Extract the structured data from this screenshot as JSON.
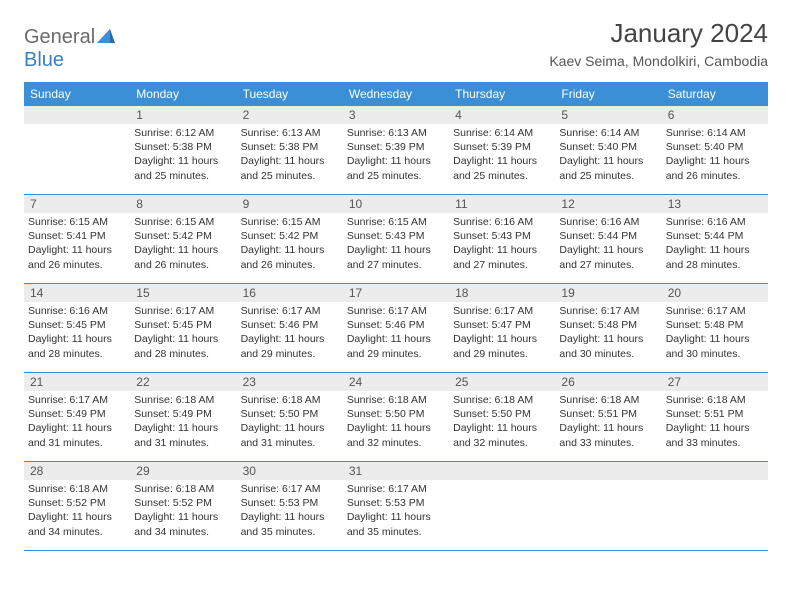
{
  "logo": {
    "general": "General",
    "blue": "Blue"
  },
  "title": "January 2024",
  "subtitle": "Kaev Seima, Mondolkiri, Cambodia",
  "colors": {
    "header_bg": "#3a8fd6",
    "header_text": "#ffffff",
    "daynum_bg": "#ececec",
    "daynum_text": "#555555",
    "body_text": "#333333",
    "title_text": "#444444",
    "logo_gray": "#6b6b6b",
    "logo_blue": "#3a7fc4",
    "rule": "#3a8fd6"
  },
  "dayheaders": [
    "Sunday",
    "Monday",
    "Tuesday",
    "Wednesday",
    "Thursday",
    "Friday",
    "Saturday"
  ],
  "weeks": [
    [
      {
        "n": "",
        "l1": "",
        "l2": "",
        "l3": "",
        "l4": ""
      },
      {
        "n": "1",
        "l1": "Sunrise: 6:12 AM",
        "l2": "Sunset: 5:38 PM",
        "l3": "Daylight: 11 hours",
        "l4": "and 25 minutes."
      },
      {
        "n": "2",
        "l1": "Sunrise: 6:13 AM",
        "l2": "Sunset: 5:38 PM",
        "l3": "Daylight: 11 hours",
        "l4": "and 25 minutes."
      },
      {
        "n": "3",
        "l1": "Sunrise: 6:13 AM",
        "l2": "Sunset: 5:39 PM",
        "l3": "Daylight: 11 hours",
        "l4": "and 25 minutes."
      },
      {
        "n": "4",
        "l1": "Sunrise: 6:14 AM",
        "l2": "Sunset: 5:39 PM",
        "l3": "Daylight: 11 hours",
        "l4": "and 25 minutes."
      },
      {
        "n": "5",
        "l1": "Sunrise: 6:14 AM",
        "l2": "Sunset: 5:40 PM",
        "l3": "Daylight: 11 hours",
        "l4": "and 25 minutes."
      },
      {
        "n": "6",
        "l1": "Sunrise: 6:14 AM",
        "l2": "Sunset: 5:40 PM",
        "l3": "Daylight: 11 hours",
        "l4": "and 26 minutes."
      }
    ],
    [
      {
        "n": "7",
        "l1": "Sunrise: 6:15 AM",
        "l2": "Sunset: 5:41 PM",
        "l3": "Daylight: 11 hours",
        "l4": "and 26 minutes."
      },
      {
        "n": "8",
        "l1": "Sunrise: 6:15 AM",
        "l2": "Sunset: 5:42 PM",
        "l3": "Daylight: 11 hours",
        "l4": "and 26 minutes."
      },
      {
        "n": "9",
        "l1": "Sunrise: 6:15 AM",
        "l2": "Sunset: 5:42 PM",
        "l3": "Daylight: 11 hours",
        "l4": "and 26 minutes."
      },
      {
        "n": "10",
        "l1": "Sunrise: 6:15 AM",
        "l2": "Sunset: 5:43 PM",
        "l3": "Daylight: 11 hours",
        "l4": "and 27 minutes."
      },
      {
        "n": "11",
        "l1": "Sunrise: 6:16 AM",
        "l2": "Sunset: 5:43 PM",
        "l3": "Daylight: 11 hours",
        "l4": "and 27 minutes."
      },
      {
        "n": "12",
        "l1": "Sunrise: 6:16 AM",
        "l2": "Sunset: 5:44 PM",
        "l3": "Daylight: 11 hours",
        "l4": "and 27 minutes."
      },
      {
        "n": "13",
        "l1": "Sunrise: 6:16 AM",
        "l2": "Sunset: 5:44 PM",
        "l3": "Daylight: 11 hours",
        "l4": "and 28 minutes."
      }
    ],
    [
      {
        "n": "14",
        "l1": "Sunrise: 6:16 AM",
        "l2": "Sunset: 5:45 PM",
        "l3": "Daylight: 11 hours",
        "l4": "and 28 minutes."
      },
      {
        "n": "15",
        "l1": "Sunrise: 6:17 AM",
        "l2": "Sunset: 5:45 PM",
        "l3": "Daylight: 11 hours",
        "l4": "and 28 minutes."
      },
      {
        "n": "16",
        "l1": "Sunrise: 6:17 AM",
        "l2": "Sunset: 5:46 PM",
        "l3": "Daylight: 11 hours",
        "l4": "and 29 minutes."
      },
      {
        "n": "17",
        "l1": "Sunrise: 6:17 AM",
        "l2": "Sunset: 5:46 PM",
        "l3": "Daylight: 11 hours",
        "l4": "and 29 minutes."
      },
      {
        "n": "18",
        "l1": "Sunrise: 6:17 AM",
        "l2": "Sunset: 5:47 PM",
        "l3": "Daylight: 11 hours",
        "l4": "and 29 minutes."
      },
      {
        "n": "19",
        "l1": "Sunrise: 6:17 AM",
        "l2": "Sunset: 5:48 PM",
        "l3": "Daylight: 11 hours",
        "l4": "and 30 minutes."
      },
      {
        "n": "20",
        "l1": "Sunrise: 6:17 AM",
        "l2": "Sunset: 5:48 PM",
        "l3": "Daylight: 11 hours",
        "l4": "and 30 minutes."
      }
    ],
    [
      {
        "n": "21",
        "l1": "Sunrise: 6:17 AM",
        "l2": "Sunset: 5:49 PM",
        "l3": "Daylight: 11 hours",
        "l4": "and 31 minutes."
      },
      {
        "n": "22",
        "l1": "Sunrise: 6:18 AM",
        "l2": "Sunset: 5:49 PM",
        "l3": "Daylight: 11 hours",
        "l4": "and 31 minutes."
      },
      {
        "n": "23",
        "l1": "Sunrise: 6:18 AM",
        "l2": "Sunset: 5:50 PM",
        "l3": "Daylight: 11 hours",
        "l4": "and 31 minutes."
      },
      {
        "n": "24",
        "l1": "Sunrise: 6:18 AM",
        "l2": "Sunset: 5:50 PM",
        "l3": "Daylight: 11 hours",
        "l4": "and 32 minutes."
      },
      {
        "n": "25",
        "l1": "Sunrise: 6:18 AM",
        "l2": "Sunset: 5:50 PM",
        "l3": "Daylight: 11 hours",
        "l4": "and 32 minutes."
      },
      {
        "n": "26",
        "l1": "Sunrise: 6:18 AM",
        "l2": "Sunset: 5:51 PM",
        "l3": "Daylight: 11 hours",
        "l4": "and 33 minutes."
      },
      {
        "n": "27",
        "l1": "Sunrise: 6:18 AM",
        "l2": "Sunset: 5:51 PM",
        "l3": "Daylight: 11 hours",
        "l4": "and 33 minutes."
      }
    ],
    [
      {
        "n": "28",
        "l1": "Sunrise: 6:18 AM",
        "l2": "Sunset: 5:52 PM",
        "l3": "Daylight: 11 hours",
        "l4": "and 34 minutes."
      },
      {
        "n": "29",
        "l1": "Sunrise: 6:18 AM",
        "l2": "Sunset: 5:52 PM",
        "l3": "Daylight: 11 hours",
        "l4": "and 34 minutes."
      },
      {
        "n": "30",
        "l1": "Sunrise: 6:17 AM",
        "l2": "Sunset: 5:53 PM",
        "l3": "Daylight: 11 hours",
        "l4": "and 35 minutes."
      },
      {
        "n": "31",
        "l1": "Sunrise: 6:17 AM",
        "l2": "Sunset: 5:53 PM",
        "l3": "Daylight: 11 hours",
        "l4": "and 35 minutes."
      },
      {
        "n": "",
        "l1": "",
        "l2": "",
        "l3": "",
        "l4": ""
      },
      {
        "n": "",
        "l1": "",
        "l2": "",
        "l3": "",
        "l4": ""
      },
      {
        "n": "",
        "l1": "",
        "l2": "",
        "l3": "",
        "l4": ""
      }
    ]
  ]
}
